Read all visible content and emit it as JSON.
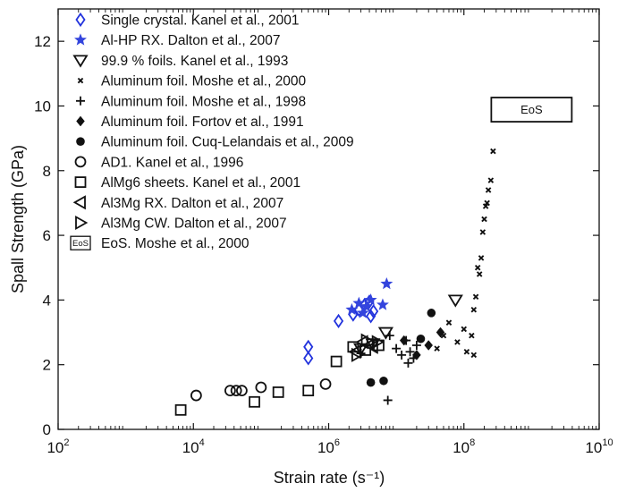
{
  "chart_data": {
    "type": "scatter",
    "xlabel": "Strain rate (s⁻¹)",
    "ylabel": "Spall Strength (GPa)",
    "xscale": "log",
    "xlim": [
      100,
      10000000000
    ],
    "ylim": [
      0,
      13
    ],
    "x_ticks": [
      {
        "value": 100,
        "base": "10",
        "exp": "2"
      },
      {
        "value": 10000,
        "base": "10",
        "exp": "4"
      },
      {
        "value": 1000000,
        "base": "10",
        "exp": "6"
      },
      {
        "value": 100000000,
        "base": "10",
        "exp": "8"
      },
      {
        "value": 10000000000,
        "base": "10",
        "exp": "10"
      }
    ],
    "y_ticks": [
      0,
      2,
      4,
      6,
      8,
      10,
      12
    ],
    "grid": false,
    "legend_position": "top-left",
    "annotation": {
      "text": "EoS",
      "x": 1000000000,
      "y": 9.9
    },
    "series": [
      {
        "name": "Single crystal. Kanel et al., 2001",
        "marker": "diamond-open",
        "color": "#2233dd",
        "points": [
          [
            500000,
            2.2
          ],
          [
            500000,
            2.55
          ],
          [
            1400000,
            3.35
          ],
          [
            2300000,
            3.55
          ],
          [
            2800000,
            3.7
          ],
          [
            3400000,
            3.85
          ],
          [
            4000000,
            3.95
          ],
          [
            4200000,
            3.5
          ],
          [
            4600000,
            3.65
          ]
        ]
      },
      {
        "name": "Al-HP RX. Dalton et al., 2007",
        "marker": "star",
        "color": "#3344dd",
        "points": [
          [
            2200000,
            3.7
          ],
          [
            2800000,
            3.9
          ],
          [
            3200000,
            3.6
          ],
          [
            3600000,
            3.8
          ],
          [
            4200000,
            4.0
          ],
          [
            6300000,
            3.85
          ],
          [
            7200000,
            4.5
          ]
        ]
      },
      {
        "name": "99.9 % foils. Kanel et al., 1993",
        "marker": "triangle-down-open",
        "color": "#111111",
        "points": [
          [
            3000000,
            2.5
          ],
          [
            4500000,
            2.65
          ],
          [
            7000000,
            3.0
          ],
          [
            75000000,
            4.0
          ]
        ]
      },
      {
        "name": "Aluminum foil. Moshe et al., 2000",
        "marker": "x-small",
        "color": "#111111",
        "points": [
          [
            40000000,
            2.5
          ],
          [
            50000000,
            2.9
          ],
          [
            60000000,
            3.3
          ],
          [
            80000000,
            2.7
          ],
          [
            100000000,
            3.1
          ],
          [
            110000000,
            2.4
          ],
          [
            130000000,
            2.9
          ],
          [
            140000000,
            2.3
          ],
          [
            140000000,
            3.7
          ],
          [
            150000000,
            4.1
          ],
          [
            160000000,
            5.0
          ],
          [
            170000000,
            4.8
          ],
          [
            180000000,
            5.3
          ],
          [
            190000000,
            6.1
          ],
          [
            200000000,
            6.5
          ],
          [
            210000000,
            6.9
          ],
          [
            220000000,
            7.0
          ],
          [
            230000000,
            7.4
          ],
          [
            250000000,
            7.7
          ],
          [
            270000000,
            8.6
          ]
        ]
      },
      {
        "name": "Aluminum foil. Moshe et al., 1998",
        "marker": "plus",
        "color": "#111111",
        "points": [
          [
            8000000,
            2.9
          ],
          [
            10000000,
            2.5
          ],
          [
            12000000,
            2.3
          ],
          [
            14000000,
            2.75
          ],
          [
            16000000,
            2.4
          ],
          [
            18000000,
            2.2
          ],
          [
            20000000,
            2.6
          ],
          [
            15000000,
            2.05
          ],
          [
            7500000,
            0.9
          ],
          [
            3000000,
            2.35
          ]
        ]
      },
      {
        "name": "Aluminum foil. Fortov et al., 1991",
        "marker": "diamond-filled",
        "color": "#111111",
        "points": [
          [
            13000000,
            2.75
          ],
          [
            20000000,
            2.3
          ],
          [
            30000000,
            2.6
          ],
          [
            45000000,
            3.0
          ]
        ]
      },
      {
        "name": "Aluminum foil. Cuq-Lelandais et al., 2009",
        "marker": "circle-filled",
        "color": "#111111",
        "points": [
          [
            4200000,
            1.45
          ],
          [
            6500000,
            1.5
          ],
          [
            23000000,
            2.8
          ],
          [
            33000000,
            3.6
          ]
        ]
      },
      {
        "name": "AD1. Kanel et al., 1996",
        "marker": "circle-open",
        "color": "#111111",
        "points": [
          [
            11000,
            1.05
          ],
          [
            35000,
            1.2
          ],
          [
            43000,
            1.2
          ],
          [
            52000,
            1.2
          ],
          [
            100000,
            1.3
          ],
          [
            900000,
            1.4
          ]
        ]
      },
      {
        "name": "AlMg6 sheets. Kanel et al., 2001",
        "marker": "square-open",
        "color": "#111111",
        "points": [
          [
            6500,
            0.6
          ],
          [
            80000,
            0.85
          ],
          [
            180000,
            1.15
          ],
          [
            500000,
            1.2
          ],
          [
            1300000,
            2.1
          ],
          [
            2300000,
            2.55
          ],
          [
            3500000,
            2.45
          ],
          [
            5500000,
            2.6
          ]
        ]
      },
      {
        "name": "Al3Mg RX. Dalton et al., 2007",
        "marker": "triangle-left-open",
        "color": "#111111",
        "points": [
          [
            2500000,
            2.4
          ],
          [
            3200000,
            2.7
          ],
          [
            4500000,
            2.55
          ]
        ]
      },
      {
        "name": "Al3Mg CW. Dalton et al., 2007",
        "marker": "triangle-right-open",
        "color": "#111111",
        "points": [
          [
            2600000,
            2.3
          ],
          [
            3600000,
            2.75
          ],
          [
            5200000,
            2.7
          ]
        ]
      },
      {
        "name": "EoS. Moshe et al., 2000",
        "marker": "eos-box",
        "color": "#111111",
        "points": []
      }
    ]
  }
}
